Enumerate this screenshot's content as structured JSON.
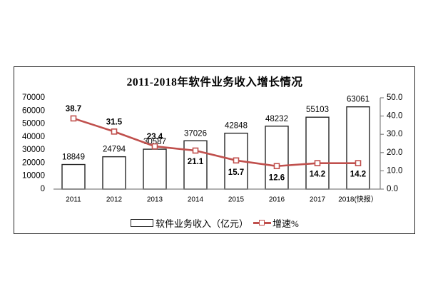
{
  "chart_data": {
    "type": "combo",
    "title": "2011-2018年软件业务收入增长情况",
    "categories": [
      "2011",
      "2012",
      "2013",
      "2014",
      "2015",
      "2016",
      "2017",
      "2018(快报）"
    ],
    "series": [
      {
        "name": "软件业务收入（亿元）",
        "type": "bar",
        "axis": "left",
        "values": [
          18849,
          24794,
          30587,
          37026,
          42848,
          48232,
          55103,
          63061
        ],
        "fill": "#FFFFFF",
        "stroke": "#262626"
      },
      {
        "name": "增速%",
        "type": "line",
        "axis": "right",
        "values": [
          38.7,
          31.5,
          23.4,
          21.1,
          15.7,
          12.6,
          14.2,
          14.2
        ],
        "color": "#C0504D",
        "marker": "square",
        "marker_fill": "#FFFFFF"
      }
    ],
    "left_axis": {
      "min": 0,
      "max": 70000,
      "tick_labels": [
        "0",
        "10000",
        "20000",
        "30000",
        "40000",
        "50000",
        "60000",
        "70000"
      ]
    },
    "right_axis": {
      "min": 0,
      "max": 50,
      "tick_labels": [
        "0.0",
        "10.0",
        "20.0",
        "30.0",
        "40.0",
        "50.0"
      ]
    },
    "legend_position": "bottom-center",
    "grid": false,
    "plot_background": "#FFFFFF",
    "frame_border": "#262626",
    "axis_color": "#808080"
  }
}
